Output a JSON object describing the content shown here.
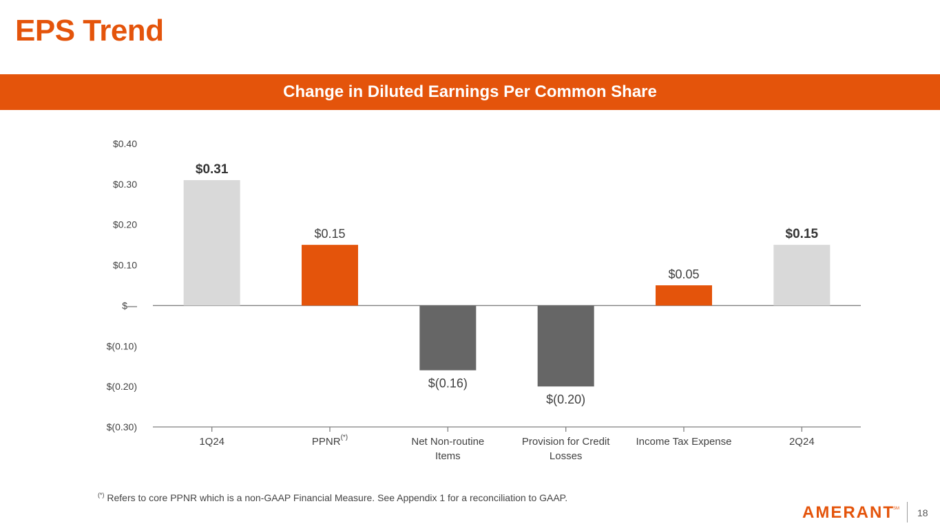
{
  "page": {
    "title": "EPS Trend",
    "banner": "Change in Diluted Earnings Per Common Share",
    "footnote_marker": "(*)",
    "footnote_text": " Refers to core PPNR which is a non-GAAP Financial Measure. See Appendix 1 for a reconciliation to GAAP.",
    "logo": "AMERANT",
    "logo_mark": "SM",
    "page_number": "18"
  },
  "colors": {
    "accent": "#e4540b",
    "total_bar": "#d9d9d9",
    "increase_bar": "#e4540b",
    "decrease_bar": "#666666",
    "axis": "#7f7f7f",
    "text": "#404040"
  },
  "chart_data": {
    "type": "bar",
    "title": "Change in Diluted Earnings Per Common Share",
    "categories": [
      "1Q24",
      "PPNR",
      "Net Non-routine Items",
      "Provision for Credit Losses",
      "Income Tax Expense",
      "2Q24"
    ],
    "category_lines": [
      [
        "1Q24"
      ],
      [
        "PPNR"
      ],
      [
        "Net Non-routine",
        "Items"
      ],
      [
        "Provision for Credit",
        "Losses"
      ],
      [
        "Income Tax Expense"
      ],
      [
        "2Q24"
      ]
    ],
    "category_superscripts": [
      "",
      "(*)",
      "",
      "",
      "",
      ""
    ],
    "values": [
      0.31,
      0.15,
      -0.16,
      -0.2,
      0.05,
      0.15
    ],
    "bar_kinds": [
      "total",
      "increase",
      "decrease",
      "decrease",
      "increase",
      "total"
    ],
    "data_labels": [
      "$0.31",
      "$0.15",
      "$(0.16)",
      "$(0.20)",
      "$0.05",
      "$0.15"
    ],
    "label_bold": [
      true,
      false,
      false,
      false,
      false,
      true
    ],
    "ylim": [
      -0.3,
      0.4
    ],
    "yticks": [
      0.4,
      0.3,
      0.2,
      0.1,
      0,
      -0.1,
      -0.2,
      -0.3
    ],
    "ytick_labels": [
      "$0.40",
      "$0.30",
      "$0.20",
      "$0.10",
      "$—",
      "$(0.10)",
      "$(0.20)",
      "$(0.30)"
    ],
    "xlabel": "",
    "ylabel": "",
    "grid": false,
    "legend": "none"
  }
}
